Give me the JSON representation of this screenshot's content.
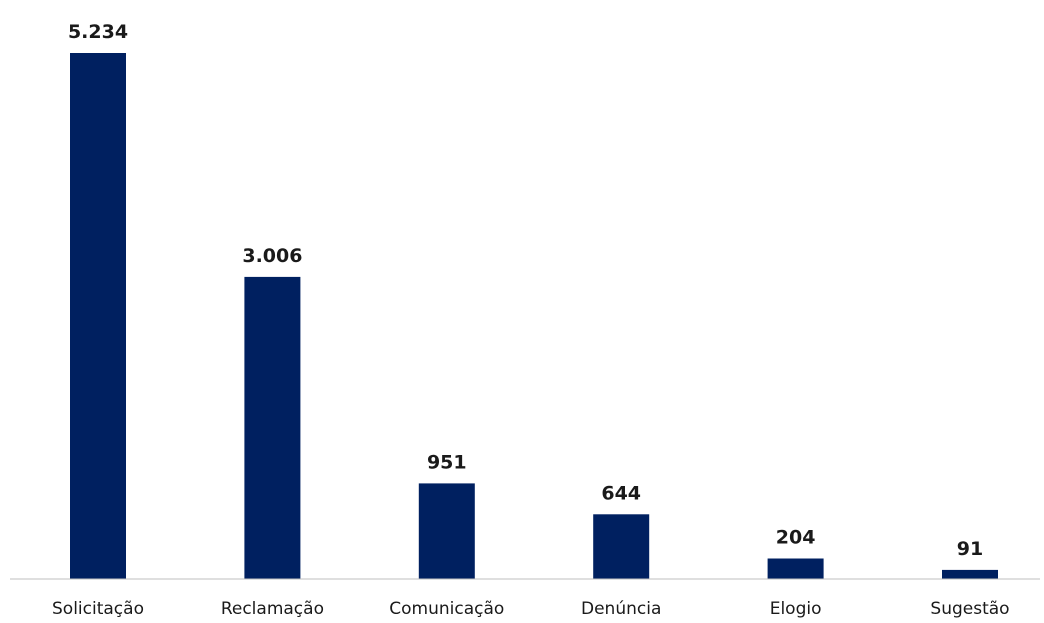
{
  "chart_data": {
    "type": "bar",
    "categories": [
      "Solicitação",
      "Reclamação",
      "Comunicação",
      "Denúncia",
      "Elogio",
      "Sugestão"
    ],
    "values": [
      5234,
      3006,
      951,
      644,
      204,
      91
    ],
    "value_labels": [
      "5.234",
      "3.006",
      "951",
      "644",
      "204",
      "91"
    ],
    "title": "",
    "xlabel": "",
    "ylabel": "",
    "ylim": [
      0,
      5234
    ],
    "grid": false,
    "legend": "none",
    "colors": {
      "bar": "#002060",
      "axis": "#bfbfbf",
      "text": "#1a1a1a"
    }
  }
}
